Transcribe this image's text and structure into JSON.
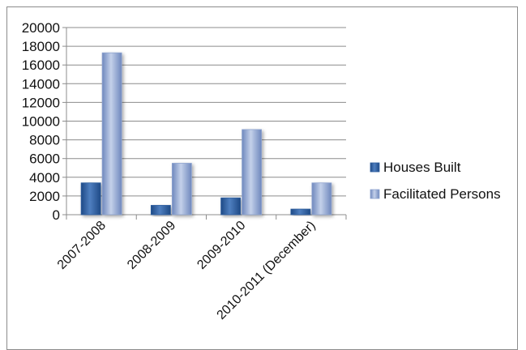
{
  "chart_data": {
    "type": "bar",
    "categories": [
      "2007-2008",
      "2008-2009",
      "2009-2010",
      "2010-2011 (December)"
    ],
    "series": [
      {
        "name": "Houses Built",
        "values": [
          3400,
          1000,
          1800,
          600
        ]
      },
      {
        "name": "Facilitated Persons",
        "values": [
          17300,
          5500,
          9100,
          3400
        ]
      }
    ],
    "ylim": [
      0,
      20000
    ],
    "yticks": [
      0,
      2000,
      4000,
      6000,
      8000,
      10000,
      12000,
      14000,
      16000,
      18000,
      20000
    ],
    "grid": true,
    "legend_position": "right",
    "colors": {
      "Houses Built": "#2f5fa0",
      "Facilitated Persons": "#8ea4cf",
      "gridline": "#8c8c8c",
      "axis": "#8c8c8c"
    }
  }
}
